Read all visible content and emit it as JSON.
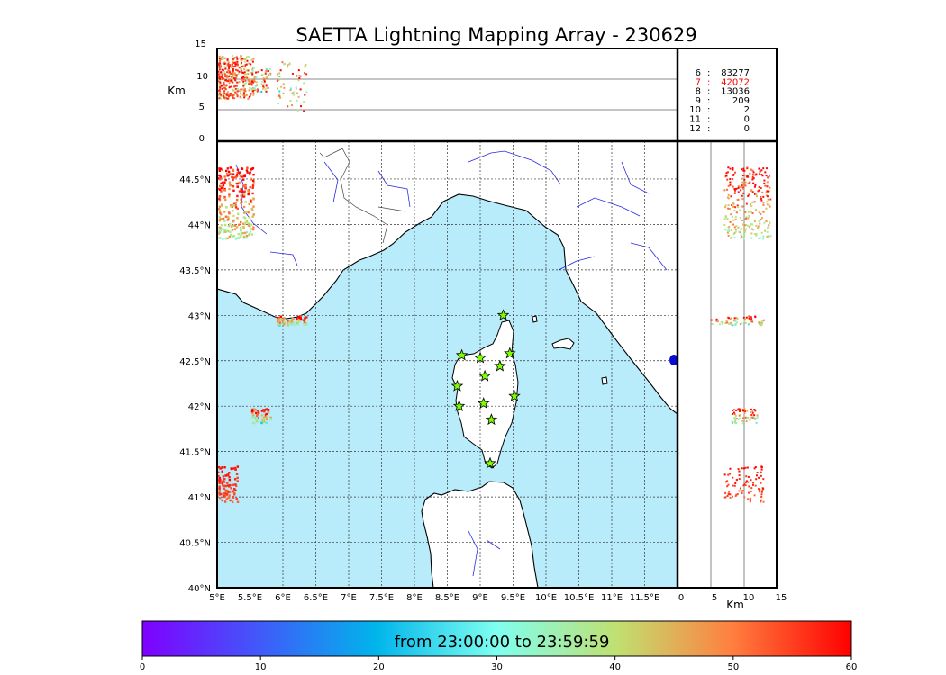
{
  "title": "SAETTA Lightning Mapping Array - 230629",
  "top_panel": {
    "ylabel": "Km",
    "yticks": [
      "15",
      "10",
      "5",
      "0"
    ]
  },
  "side_panel": {
    "xlabel": "Km",
    "xticks": [
      "0",
      "5",
      "10",
      "15"
    ]
  },
  "map": {
    "lon_ticks": [
      "5°E",
      "5.5°E",
      "6°E",
      "6.5°E",
      "7°E",
      "7.5°E",
      "8°E",
      "8.5°E",
      "9°E",
      "9.5°E",
      "10°E",
      "10.5°E",
      "11°E",
      "11.5°E"
    ],
    "lat_ticks": [
      "44.5°N",
      "44°N",
      "43.5°N",
      "43°N",
      "42.5°N",
      "42°N",
      "41.5°N",
      "41°N",
      "40.5°N",
      "40°N"
    ],
    "lon_range": [
      5,
      12
    ],
    "lat_range": [
      40,
      45
    ],
    "colors": {
      "sea": "#b8ecfa",
      "land": "#ffffff",
      "rivers": "#2a2ae6",
      "borders": "#444444"
    }
  },
  "station_counts": [
    {
      "stations": "6",
      "count": "83277",
      "color": "#000000"
    },
    {
      "stations": "7",
      "count": "42072",
      "color": "#ff0000"
    },
    {
      "stations": "8",
      "count": "13036",
      "color": "#000000"
    },
    {
      "stations": "9",
      "count": "209",
      "color": "#000000"
    },
    {
      "stations": "10",
      "count": "2",
      "color": "#000000"
    },
    {
      "stations": "11",
      "count": "0",
      "color": "#000000"
    },
    {
      "stations": "12",
      "count": "0",
      "color": "#000000"
    }
  ],
  "colorbar": {
    "label": "from 23:00:00 to 23:59:59",
    "ticks": [
      "0",
      "10",
      "20",
      "30",
      "40",
      "50",
      "60"
    ],
    "colormap": "rainbow"
  },
  "chart_data": {
    "type": "scatter",
    "title": "SAETTA Lightning Mapping Array - 230629",
    "xlabel": "",
    "ylabel": "",
    "xlim": [
      5,
      12
    ],
    "ylim": [
      40,
      45
    ],
    "altitude_km_range": [
      0,
      15
    ],
    "time_minutes_range": [
      0,
      60
    ],
    "color_by": "time (minutes)",
    "stations": [
      {
        "lon": 9.35,
        "lat": 43.0
      },
      {
        "lon": 8.72,
        "lat": 42.56
      },
      {
        "lon": 9.0,
        "lat": 42.53
      },
      {
        "lon": 9.45,
        "lat": 42.58
      },
      {
        "lon": 9.3,
        "lat": 42.44
      },
      {
        "lon": 9.07,
        "lat": 42.33
      },
      {
        "lon": 8.65,
        "lat": 42.22
      },
      {
        "lon": 9.52,
        "lat": 42.11
      },
      {
        "lon": 8.68,
        "lat": 42.0
      },
      {
        "lon": 9.05,
        "lat": 42.03
      },
      {
        "lon": 9.17,
        "lat": 41.85
      },
      {
        "lon": 9.15,
        "lat": 41.37
      }
    ],
    "lightning_clusters": [
      {
        "lon": [
          5.0,
          5.55
        ],
        "lat": [
          43.85,
          44.65
        ],
        "alt_km": [
          7,
          14
        ],
        "time": [
          30,
          60
        ],
        "n": 260
      },
      {
        "lon": [
          5.0,
          5.3
        ],
        "lat": [
          40.95,
          41.35
        ],
        "alt_km": [
          7,
          13
        ],
        "time": [
          50,
          60
        ],
        "n": 90
      },
      {
        "lon": [
          5.5,
          5.8
        ],
        "lat": [
          41.82,
          41.98
        ],
        "alt_km": [
          8,
          12
        ],
        "time": [
          20,
          60
        ],
        "n": 60
      },
      {
        "lon": [
          5.9,
          6.35
        ],
        "lat": [
          42.9,
          43.0
        ],
        "alt_km": [
          5,
          13
        ],
        "time": [
          20,
          60
        ],
        "n": 60
      }
    ]
  }
}
